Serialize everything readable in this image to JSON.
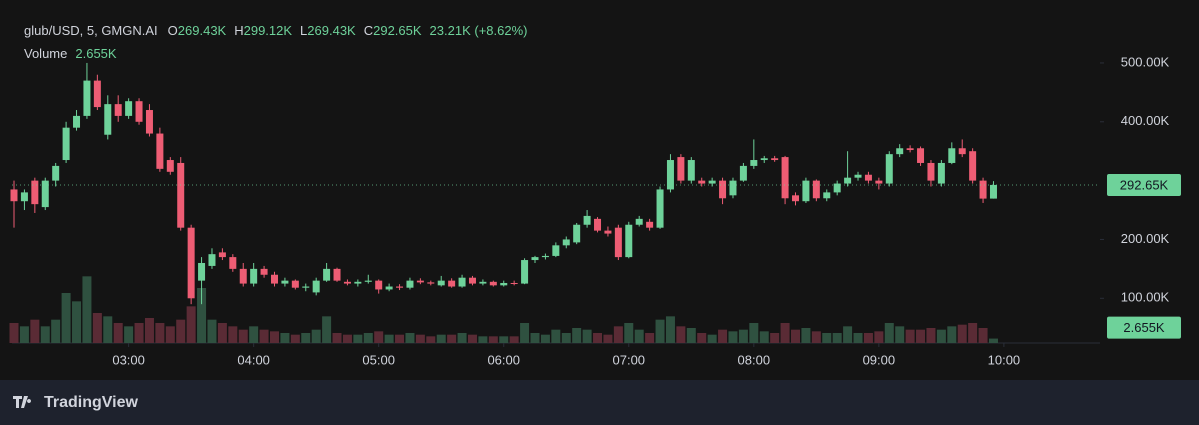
{
  "chart_data": {
    "type": "candlestick",
    "header": {
      "symbol": "glub/USD, 5, GMGN.AI",
      "ohlc": [
        {
          "key": "O",
          "value": "269.43K"
        },
        {
          "key": "H",
          "value": "299.12K"
        },
        {
          "key": "L",
          "value": "269.43K"
        },
        {
          "key": "C",
          "value": "292.65K"
        }
      ],
      "change": "23.21K (+8.62%)",
      "volume_label": "Volume",
      "volume_value": "2.655K"
    },
    "brand": "TradingView",
    "last_price_label": "292.65K",
    "last_volume_label": "2.655K",
    "x": [
      "02:05",
      "02:10",
      "02:15",
      "02:20",
      "02:25",
      "02:30",
      "02:35",
      "02:40",
      "02:45",
      "02:50",
      "02:55",
      "03:00",
      "03:05",
      "03:10",
      "03:15",
      "03:20",
      "03:25",
      "03:30",
      "03:35",
      "03:40",
      "03:45",
      "03:50",
      "03:55",
      "04:00",
      "04:05",
      "04:10",
      "04:15",
      "04:20",
      "04:25",
      "04:30",
      "04:35",
      "04:40",
      "04:45",
      "04:50",
      "04:55",
      "05:00",
      "05:05",
      "05:10",
      "05:15",
      "05:20",
      "05:25",
      "05:30",
      "05:35",
      "05:40",
      "05:45",
      "05:50",
      "05:55",
      "06:00",
      "06:05",
      "06:10",
      "06:15",
      "06:20",
      "06:25",
      "06:30",
      "06:35",
      "06:40",
      "06:45",
      "06:50",
      "06:55",
      "07:00",
      "07:05",
      "07:10",
      "07:15",
      "07:20",
      "07:25",
      "07:30",
      "07:35",
      "07:40",
      "07:45",
      "07:50",
      "07:55",
      "08:00",
      "08:05",
      "08:10",
      "08:15",
      "08:20",
      "08:25",
      "08:30",
      "08:35",
      "08:40",
      "08:45",
      "08:50",
      "08:55",
      "09:00",
      "09:05",
      "09:10",
      "09:15",
      "09:20",
      "09:25",
      "09:30",
      "09:35",
      "09:40",
      "09:45",
      "09:50",
      "09:55"
    ],
    "open": [
      285,
      265,
      300,
      255,
      300,
      335,
      390,
      410,
      470,
      378,
      430,
      410,
      435,
      420,
      380,
      335,
      330,
      220,
      130,
      155,
      178,
      170,
      150,
      125,
      150,
      140,
      125,
      130,
      118,
      110,
      130,
      150,
      128,
      125,
      128,
      130,
      115,
      120,
      118,
      130,
      127,
      122,
      130,
      120,
      135,
      125,
      128,
      122,
      126,
      125,
      165,
      170,
      172,
      190,
      195,
      225,
      235,
      215,
      220,
      170,
      225,
      230,
      220,
      285,
      340,
      300,
      300,
      295,
      300,
      275,
      300,
      325,
      335,
      338,
      340,
      275,
      265,
      300,
      270,
      280,
      295,
      305,
      310,
      300,
      295,
      345,
      355,
      355,
      330,
      295,
      330,
      355,
      350,
      300,
      269.43
    ],
    "high": [
      300,
      285,
      305,
      305,
      330,
      400,
      420,
      500,
      480,
      445,
      445,
      440,
      440,
      430,
      390,
      340,
      340,
      225,
      170,
      185,
      185,
      175,
      160,
      160,
      155,
      145,
      135,
      132,
      125,
      135,
      160,
      152,
      132,
      132,
      140,
      132,
      125,
      124,
      135,
      134,
      130,
      138,
      134,
      140,
      138,
      132,
      130,
      130,
      130,
      168,
      172,
      176,
      195,
      205,
      228,
      250,
      238,
      222,
      225,
      230,
      240,
      235,
      290,
      345,
      345,
      340,
      305,
      305,
      305,
      305,
      330,
      370,
      342,
      342,
      342,
      280,
      305,
      302,
      285,
      300,
      350,
      315,
      315,
      305,
      350,
      362,
      360,
      358,
      335,
      335,
      365,
      370,
      355,
      305,
      299.12
    ],
    "low": [
      220,
      250,
      245,
      250,
      290,
      330,
      385,
      405,
      420,
      370,
      400,
      405,
      395,
      375,
      315,
      310,
      215,
      90,
      90,
      150,
      165,
      145,
      120,
      120,
      135,
      120,
      120,
      115,
      112,
      105,
      128,
      128,
      122,
      120,
      125,
      108,
      112,
      114,
      115,
      124,
      122,
      120,
      118,
      118,
      122,
      122,
      120,
      120,
      122,
      124,
      160,
      166,
      170,
      185,
      192,
      220,
      212,
      205,
      165,
      168,
      222,
      215,
      218,
      280,
      295,
      295,
      290,
      290,
      260,
      270,
      298,
      320,
      330,
      332,
      260,
      258,
      262,
      265,
      265,
      275,
      290,
      300,
      295,
      285,
      290,
      340,
      348,
      325,
      290,
      290,
      328,
      340,
      295,
      262,
      269.43
    ],
    "close": [
      265,
      280,
      260,
      300,
      325,
      390,
      410,
      470,
      425,
      430,
      410,
      435,
      400,
      380,
      320,
      315,
      220,
      100,
      160,
      175,
      170,
      150,
      125,
      150,
      140,
      125,
      130,
      118,
      120,
      130,
      150,
      130,
      125,
      128,
      130,
      115,
      120,
      118,
      130,
      127,
      125,
      130,
      120,
      135,
      125,
      128,
      122,
      126,
      125,
      165,
      170,
      172,
      190,
      200,
      225,
      240,
      215,
      210,
      170,
      225,
      235,
      220,
      285,
      335,
      300,
      335,
      295,
      300,
      270,
      300,
      325,
      335,
      338,
      335,
      270,
      265,
      300,
      270,
      280,
      295,
      305,
      310,
      300,
      295,
      345,
      355,
      352,
      330,
      300,
      330,
      355,
      345,
      300,
      269.43,
      292.65
    ],
    "volume": [
      12,
      10,
      14,
      10,
      14,
      30,
      25,
      40,
      18,
      16,
      12,
      10,
      12,
      15,
      12,
      10,
      14,
      22,
      33,
      14,
      12,
      10,
      8,
      10,
      8,
      7,
      6,
      5,
      6,
      8,
      16,
      6,
      5,
      5,
      6,
      7,
      5,
      5,
      6,
      5,
      4,
      5,
      5,
      6,
      5,
      4,
      4,
      4,
      4,
      12,
      6,
      5,
      8,
      6,
      9,
      8,
      6,
      5,
      10,
      12,
      8,
      6,
      14,
      16,
      10,
      9,
      6,
      5,
      8,
      7,
      8,
      12,
      7,
      6,
      12,
      8,
      9,
      7,
      6,
      6,
      10,
      6,
      6,
      7,
      12,
      10,
      8,
      8,
      9,
      8,
      10,
      11,
      12,
      9,
      2.655
    ],
    "ylim": [
      24,
      607
    ],
    "yticks": [
      {
        "value": 100,
        "label": "100.00K"
      },
      {
        "value": 200,
        "label": "200.00K"
      },
      {
        "value": 400,
        "label": "400.00K"
      },
      {
        "value": 500,
        "label": "500.00K"
      }
    ],
    "volume_ylim": [
      0,
      72
    ],
    "xticks": [
      "03:00",
      "04:00",
      "05:00",
      "06:00",
      "07:00",
      "08:00",
      "09:00",
      "10:00"
    ],
    "up_color": "#6ed29a",
    "down_color": "#ee5d74",
    "volume_up_color": "#2f5140",
    "volume_down_color": "#5a2b35",
    "grid": false
  }
}
